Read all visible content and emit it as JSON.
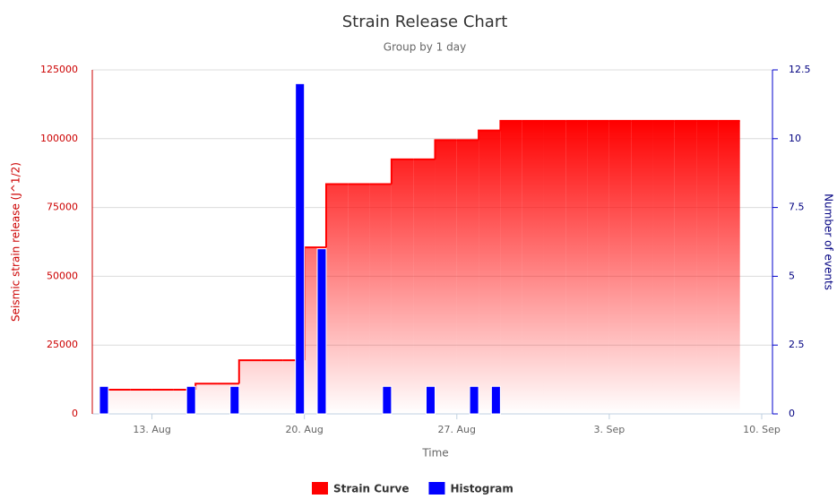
{
  "chart_data": {
    "type": "strain-histogram",
    "title": "Strain Release Chart",
    "subtitle": "Group by 1 day",
    "x_label": "Time",
    "y_label": "Seismic strain release (J^1/2)",
    "y2_label": "Number of events",
    "categories": [
      null,
      null,
      null,
      "13. Aug",
      null,
      null,
      null,
      null,
      null,
      null,
      "20. Aug",
      null,
      null,
      null,
      null,
      null,
      null,
      "27. Aug",
      null,
      null,
      null,
      null,
      null,
      null,
      "3. Sep",
      null,
      null,
      null,
      null,
      null,
      null,
      "10. Sep"
    ],
    "series": [
      {
        "name": "Strain Curve",
        "color": "#ff0000",
        "type": "step-area",
        "values": [
          null,
          8800,
          8800,
          8800,
          8800,
          11000,
          11000,
          19500,
          19500,
          19500,
          60500,
          83500,
          83500,
          83500,
          92500,
          92500,
          99500,
          99500,
          103000,
          106500,
          106500,
          106500,
          106500,
          106500,
          106500,
          106500,
          106500,
          106500,
          106500,
          106500,
          null,
          null
        ]
      },
      {
        "name": "Histogram",
        "color": "#0000ff",
        "type": "column",
        "axis": "y2",
        "values": [
          null,
          1,
          0,
          0,
          0,
          1,
          0,
          1,
          0,
          0,
          12,
          6,
          0,
          0,
          1,
          0,
          1,
          0,
          1,
          1,
          0,
          0,
          0,
          0,
          0,
          0,
          0,
          0,
          0,
          0,
          null,
          null
        ]
      }
    ],
    "ylim": [
      0,
      125000
    ],
    "yticks": [
      0,
      25000,
      50000,
      75000,
      100000,
      125000
    ],
    "y2lim": [
      0,
      12.5
    ],
    "y2ticks": [
      0,
      2.5,
      5,
      7.5,
      10,
      12.5
    ],
    "grid": true,
    "legend": "bottom"
  }
}
